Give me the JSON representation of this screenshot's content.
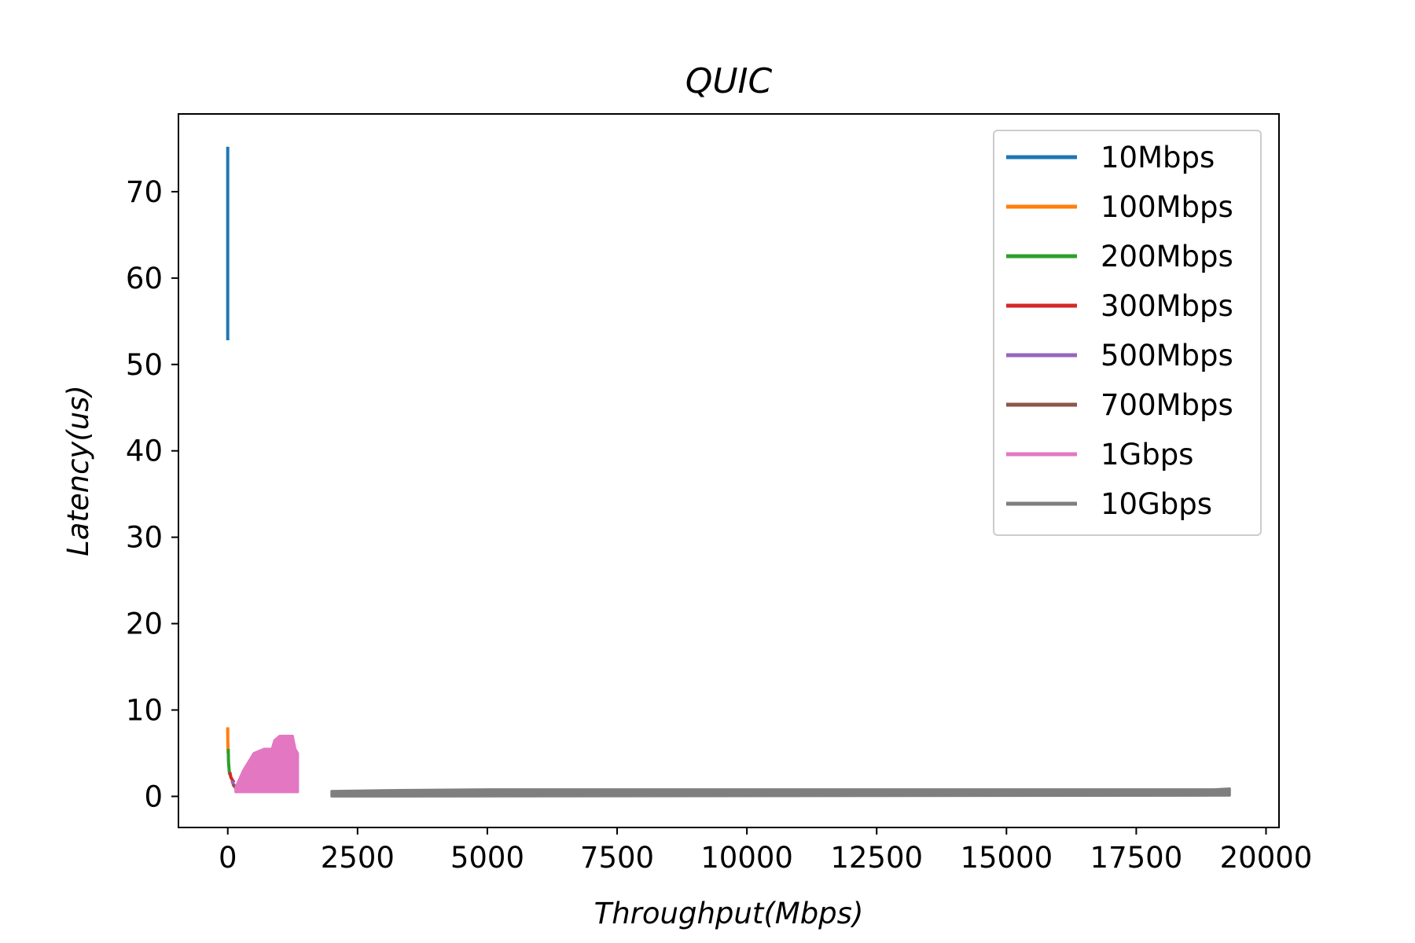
{
  "chart_data": {
    "type": "line",
    "title": "QUIC",
    "xlabel": "Throughput(Mbps)",
    "ylabel": "Latency(us)",
    "xlim": [
      -950,
      20250
    ],
    "ylim": [
      -3.6,
      79
    ],
    "xticks": [
      0,
      2500,
      5000,
      7500,
      10000,
      12500,
      15000,
      17500,
      20000
    ],
    "xtick_labels": [
      "0",
      "2500",
      "5000",
      "7500",
      "10000",
      "12500",
      "15000",
      "17500",
      "20000"
    ],
    "yticks": [
      0,
      10,
      20,
      30,
      40,
      50,
      60,
      70
    ],
    "ytick_labels": [
      "0",
      "10",
      "20",
      "30",
      "40",
      "50",
      "60",
      "70"
    ],
    "grid": false,
    "legend_position": "upper-right",
    "series": [
      {
        "name": "10Mbps",
        "color": "#1f77b4",
        "x": [
          0,
          0,
          0,
          0,
          0,
          0,
          0
        ],
        "y": [
          75.2,
          70.0,
          64.8,
          60.0,
          55.0,
          53.5,
          52.8
        ]
      },
      {
        "name": "100Mbps",
        "color": "#ff7f0e",
        "x": [
          0,
          0,
          2,
          5,
          5
        ],
        "y": [
          8.0,
          7.0,
          6.0,
          5.5,
          5.0
        ]
      },
      {
        "name": "200Mbps",
        "color": "#2ca02c",
        "x": [
          10,
          12,
          15,
          20,
          25,
          30,
          40
        ],
        "y": [
          5.5,
          4.8,
          4.0,
          3.5,
          3.2,
          2.8,
          2.5
        ]
      },
      {
        "name": "300Mbps",
        "color": "#d62728",
        "x": [
          40,
          50,
          60,
          80,
          100,
          120
        ],
        "y": [
          2.8,
          2.5,
          2.2,
          2.0,
          1.8,
          1.6
        ]
      },
      {
        "name": "500Mbps",
        "color": "#9467bd",
        "x": [
          80,
          100,
          120,
          140
        ],
        "y": [
          1.8,
          1.5,
          1.3,
          1.2
        ]
      },
      {
        "name": "700Mbps",
        "color": "#8c564b",
        "x": [
          100,
          120,
          150,
          180
        ],
        "y": [
          1.4,
          1.2,
          1.0,
          0.9
        ]
      },
      {
        "name": "1Gbps",
        "color": "#e377c2",
        "x": [
          150,
          300,
          500,
          700,
          850,
          900,
          1000,
          1050,
          1150,
          1250,
          1300,
          1350,
          1350,
          150
        ],
        "y": [
          1.0,
          3.0,
          5.0,
          5.5,
          5.5,
          6.5,
          7.0,
          7.0,
          7.0,
          7.0,
          5.5,
          5.0,
          0.5,
          0.5
        ]
      },
      {
        "name": "10Gbps",
        "color": "#7f7f7f",
        "x": [
          2000,
          3000,
          5000,
          7500,
          10000,
          12500,
          15000,
          17500,
          19000,
          19300,
          19300,
          2000
        ],
        "y": [
          0.6,
          0.7,
          0.8,
          0.8,
          0.8,
          0.8,
          0.8,
          0.8,
          0.8,
          0.9,
          0.1,
          0.0
        ]
      }
    ]
  }
}
